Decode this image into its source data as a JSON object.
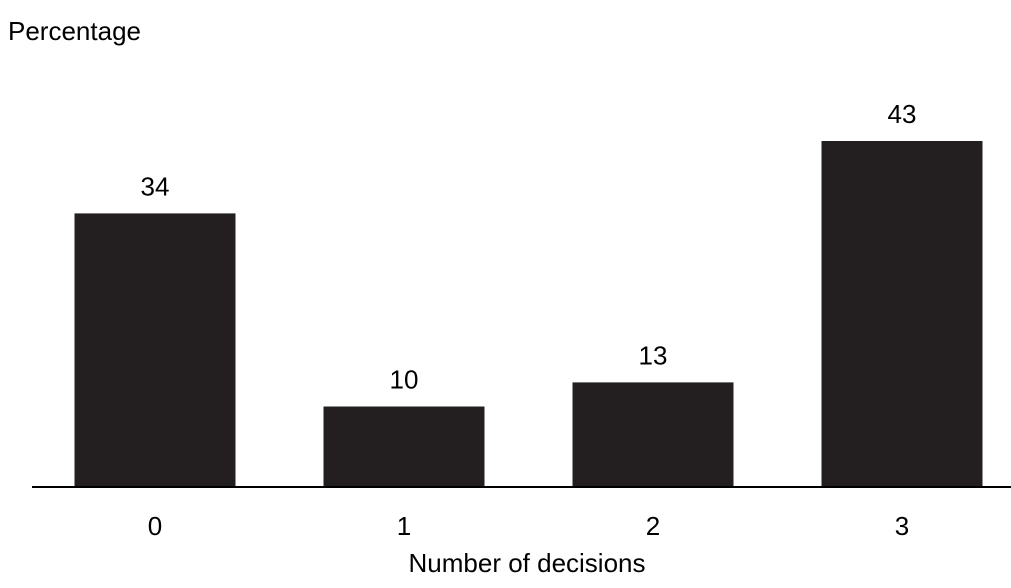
{
  "chart_data": {
    "type": "bar",
    "title": "",
    "ylabel": "Percentage",
    "xlabel": "Number of decisions",
    "categories": [
      "0",
      "1",
      "2",
      "3"
    ],
    "values": [
      34,
      10,
      13,
      43
    ],
    "data_labels": [
      "34",
      "10",
      "13",
      "43"
    ],
    "ylim": [
      0,
      43
    ],
    "grid": false,
    "legend": "none",
    "bar_color": "#231f20",
    "axis_color": "#000000"
  }
}
